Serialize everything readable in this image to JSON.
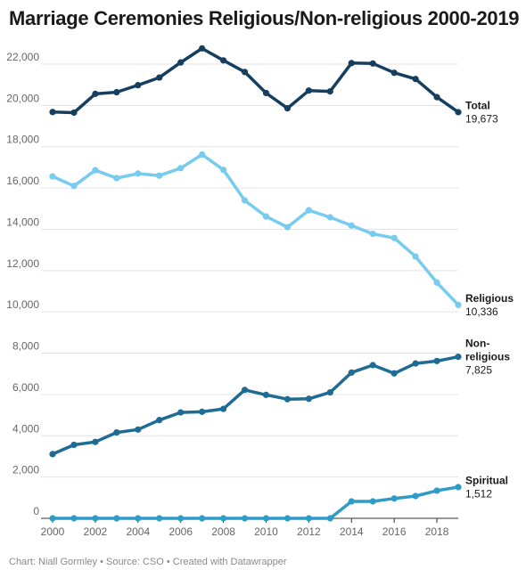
{
  "header": {
    "title": "Marriage Ceremonies Religious/Non-religious 2000-2019"
  },
  "footer": {
    "text": "Chart: Niall Gormley • Source: CSO • Created with Datawrapper"
  },
  "chart_data": {
    "type": "line",
    "title": "Marriage Ceremonies Religious/Non-religious 2000-2019",
    "xlabel": "",
    "ylabel": "",
    "xlim": [
      2000,
      2019
    ],
    "ylim": [
      0,
      22000
    ],
    "grid": true,
    "legend": "direct-labels-right",
    "x": [
      2000,
      2001,
      2002,
      2003,
      2004,
      2005,
      2006,
      2007,
      2008,
      2009,
      2010,
      2011,
      2012,
      2013,
      2014,
      2015,
      2016,
      2017,
      2018,
      2019
    ],
    "x_ticks": [
      "2000",
      "2002",
      "2004",
      "2006",
      "2008",
      "2010",
      "2012",
      "2014",
      "2016",
      "2018"
    ],
    "y_ticks": [
      "0",
      "2,000",
      "4,000",
      "6,000",
      "8,000",
      "10,000",
      "12,000",
      "14,000",
      "16,000",
      "18,000",
      "20,000",
      "22,000"
    ],
    "series": [
      {
        "name": "Total",
        "end_label": "19,673",
        "color": "#163e5f",
        "values": [
          19680,
          19650,
          20560,
          20640,
          20980,
          21350,
          22080,
          22760,
          22180,
          21620,
          20600,
          19860,
          20720,
          20680,
          22050,
          22030,
          21580,
          21280,
          20400,
          19673
        ]
      },
      {
        "name": "Religious",
        "end_label": "10,336",
        "color": "#76cbee",
        "values": [
          16560,
          16100,
          16860,
          16480,
          16700,
          16600,
          16960,
          17620,
          16880,
          15400,
          14620,
          14100,
          14920,
          14580,
          14180,
          13780,
          13580,
          12680,
          11420,
          10336
        ]
      },
      {
        "name": "Non-\nreligious",
        "end_label": "7,825",
        "color": "#1e6b93",
        "values": [
          3110,
          3560,
          3700,
          4160,
          4300,
          4760,
          5130,
          5160,
          5300,
          6220,
          5980,
          5770,
          5790,
          6100,
          7060,
          7420,
          7020,
          7500,
          7620,
          7825
        ]
      },
      {
        "name": "Spiritual",
        "end_label": "1,512",
        "color": "#2f9cc7",
        "values": [
          0,
          0,
          0,
          0,
          0,
          0,
          0,
          0,
          0,
          0,
          0,
          0,
          0,
          0,
          820,
          820,
          960,
          1080,
          1340,
          1512
        ]
      }
    ]
  }
}
